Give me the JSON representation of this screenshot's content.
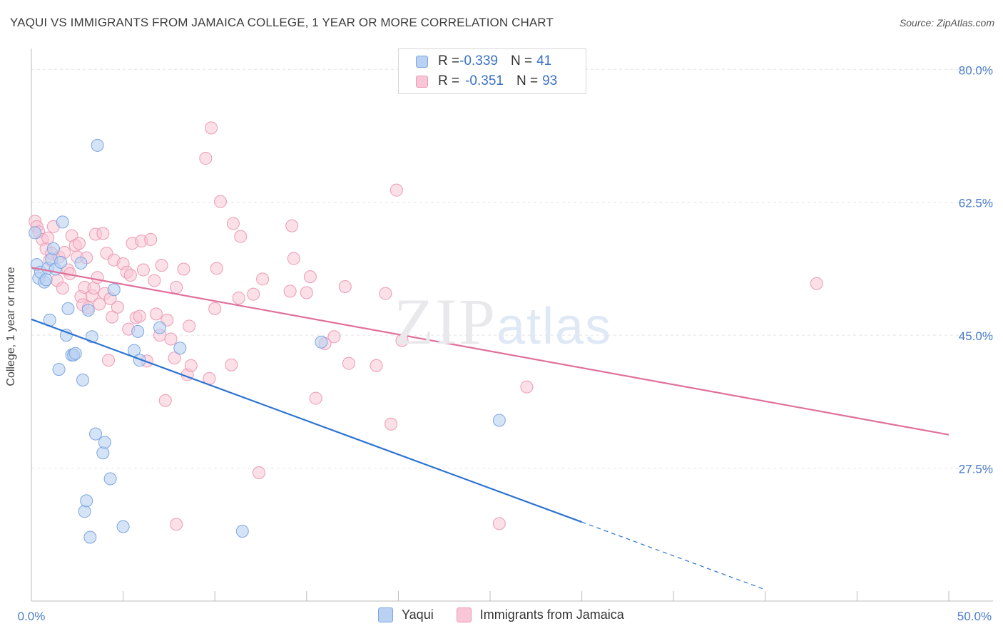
{
  "header": {
    "title": "YAQUI VS IMMIGRANTS FROM JAMAICA COLLEGE, 1 YEAR OR MORE CORRELATION CHART",
    "source": "Source: ZipAtlas.com"
  },
  "legend": {
    "rows": [
      {
        "r_label": "R = ",
        "r_value": "-0.339",
        "n_label": "N = ",
        "n_value": "41"
      },
      {
        "r_label": "R = ",
        "r_value": "-0.351",
        "n_label": "N = ",
        "n_value": "93"
      }
    ]
  },
  "watermark": {
    "zip": "ZIP",
    "atlas": "atlas"
  },
  "colors": {
    "yaqui_fill": "#b9d1f2",
    "yaqui_stroke": "#7ea6e0",
    "yaqui_line": "#2b73d2",
    "jamaica_fill": "#f8c6d6",
    "jamaica_stroke": "#ec9ab5",
    "jamaica_line": "#e0709a",
    "axis_text": "#4a7cc9",
    "grid": "#e3e3e3"
  },
  "chart_data": {
    "type": "scatter",
    "title": "YAQUI VS IMMIGRANTS FROM JAMAICA COLLEGE, 1 YEAR OR MORE CORRELATION CHART",
    "xlabel": "",
    "ylabel": "College, 1 year or more",
    "xlim": [
      0,
      50
    ],
    "ylim": [
      10,
      82
    ],
    "x_ticks": [
      0,
      50
    ],
    "x_tick_labels": [
      "0.0%",
      "50.0%"
    ],
    "y_ticks": [
      27.5,
      45.0,
      62.5,
      80.0
    ],
    "y_tick_labels": [
      "27.5%",
      "45.0%",
      "62.5%",
      "80.0%"
    ],
    "grid": true,
    "legend_position": "top-center",
    "series": [
      {
        "name": "Yaqui",
        "r": -0.339,
        "n": 41,
        "trend": {
          "x": [
            0,
            30
          ],
          "y": [
            47.1,
            20.4
          ],
          "dashed_to": {
            "x": 40,
            "y": 11.5
          }
        },
        "points": [
          [
            0.2,
            58.5
          ],
          [
            0.3,
            54.3
          ],
          [
            0.4,
            52.5
          ],
          [
            0.5,
            53.3
          ],
          [
            0.7,
            52.0
          ],
          [
            0.9,
            53.8
          ],
          [
            1.0,
            47.0
          ],
          [
            1.1,
            55.0
          ],
          [
            1.2,
            56.4
          ],
          [
            1.3,
            53.7
          ],
          [
            1.6,
            54.6
          ],
          [
            1.7,
            59.9
          ],
          [
            1.9,
            45.0
          ],
          [
            2.0,
            48.5
          ],
          [
            2.2,
            42.4
          ],
          [
            2.3,
            42.4
          ],
          [
            2.4,
            42.6
          ],
          [
            1.5,
            40.5
          ],
          [
            2.7,
            54.5
          ],
          [
            2.8,
            39.1
          ],
          [
            3.1,
            48.3
          ],
          [
            3.3,
            44.8
          ],
          [
            3.5,
            32.0
          ],
          [
            3.6,
            70.0
          ],
          [
            3.9,
            29.5
          ],
          [
            4.0,
            30.9
          ],
          [
            4.3,
            26.1
          ],
          [
            4.5,
            51.0
          ],
          [
            2.9,
            21.8
          ],
          [
            3.0,
            23.2
          ],
          [
            3.2,
            18.4
          ],
          [
            5.0,
            19.8
          ],
          [
            5.6,
            43.0
          ],
          [
            5.8,
            45.5
          ],
          [
            5.9,
            41.7
          ],
          [
            7.0,
            46.0
          ],
          [
            8.1,
            43.3
          ],
          [
            11.5,
            19.2
          ],
          [
            15.8,
            44.1
          ],
          [
            25.5,
            33.8
          ],
          [
            0.8,
            52.3
          ]
        ]
      },
      {
        "name": "Immigrants from Jamaica",
        "r": -0.351,
        "n": 93,
        "trend": {
          "x": [
            0,
            50
          ],
          "y": [
            53.9,
            31.9
          ]
        },
        "points": [
          [
            0.2,
            60.0
          ],
          [
            0.3,
            59.3
          ],
          [
            0.4,
            58.6
          ],
          [
            0.6,
            57.6
          ],
          [
            0.8,
            56.4
          ],
          [
            0.9,
            57.8
          ],
          [
            1.0,
            54.9
          ],
          [
            1.1,
            55.8
          ],
          [
            1.2,
            59.3
          ],
          [
            1.4,
            52.2
          ],
          [
            1.5,
            55.3
          ],
          [
            1.7,
            51.2
          ],
          [
            1.8,
            55.9
          ],
          [
            2.0,
            53.6
          ],
          [
            2.1,
            53.1
          ],
          [
            2.2,
            58.1
          ],
          [
            2.4,
            56.8
          ],
          [
            2.5,
            55.3
          ],
          [
            2.6,
            57.1
          ],
          [
            2.7,
            50.1
          ],
          [
            2.8,
            49.0
          ],
          [
            2.9,
            51.3
          ],
          [
            3.0,
            55.2
          ],
          [
            3.1,
            48.6
          ],
          [
            3.3,
            50.2
          ],
          [
            3.4,
            51.2
          ],
          [
            3.5,
            58.3
          ],
          [
            3.6,
            52.6
          ],
          [
            3.7,
            49.1
          ],
          [
            3.9,
            58.4
          ],
          [
            4.0,
            50.5
          ],
          [
            4.1,
            55.8
          ],
          [
            4.2,
            41.7
          ],
          [
            4.3,
            49.8
          ],
          [
            4.4,
            47.4
          ],
          [
            4.5,
            54.9
          ],
          [
            4.7,
            48.7
          ],
          [
            5.0,
            54.4
          ],
          [
            5.2,
            53.3
          ],
          [
            5.3,
            45.8
          ],
          [
            5.4,
            52.9
          ],
          [
            5.5,
            57.1
          ],
          [
            5.7,
            47.3
          ],
          [
            5.9,
            47.5
          ],
          [
            6.0,
            57.4
          ],
          [
            6.1,
            53.6
          ],
          [
            6.3,
            41.6
          ],
          [
            6.5,
            57.6
          ],
          [
            6.7,
            52.2
          ],
          [
            6.8,
            47.8
          ],
          [
            7.0,
            45.0
          ],
          [
            7.1,
            54.2
          ],
          [
            7.3,
            36.4
          ],
          [
            7.4,
            47.0
          ],
          [
            7.6,
            44.5
          ],
          [
            7.8,
            42.0
          ],
          [
            7.9,
            51.3
          ],
          [
            8.3,
            53.7
          ],
          [
            8.5,
            39.8
          ],
          [
            8.6,
            46.2
          ],
          [
            8.7,
            41.0
          ],
          [
            9.5,
            68.3
          ],
          [
            9.8,
            72.3
          ],
          [
            9.7,
            39.3
          ],
          [
            10.0,
            48.5
          ],
          [
            10.1,
            53.8
          ],
          [
            10.3,
            62.6
          ],
          [
            10.9,
            41.1
          ],
          [
            11.0,
            59.7
          ],
          [
            11.3,
            49.9
          ],
          [
            11.4,
            58.0
          ],
          [
            12.1,
            50.4
          ],
          [
            12.4,
            26.9
          ],
          [
            12.6,
            52.4
          ],
          [
            14.1,
            50.8
          ],
          [
            14.2,
            59.4
          ],
          [
            14.3,
            55.1
          ],
          [
            15.0,
            50.6
          ],
          [
            15.2,
            52.7
          ],
          [
            15.5,
            36.7
          ],
          [
            16.0,
            43.9
          ],
          [
            16.5,
            44.8
          ],
          [
            17.1,
            51.4
          ],
          [
            17.3,
            41.3
          ],
          [
            18.8,
            41.0
          ],
          [
            19.3,
            50.5
          ],
          [
            19.6,
            33.3
          ],
          [
            19.9,
            64.1
          ],
          [
            20.2,
            44.3
          ],
          [
            7.9,
            20.1
          ],
          [
            25.5,
            20.2
          ],
          [
            27.0,
            38.2
          ],
          [
            42.8,
            51.8
          ]
        ]
      }
    ]
  },
  "axes": {
    "x_left_label": "0.0%",
    "x_right_label": "50.0%",
    "y_labels": [
      "80.0%",
      "62.5%",
      "45.0%",
      "27.5%"
    ]
  }
}
